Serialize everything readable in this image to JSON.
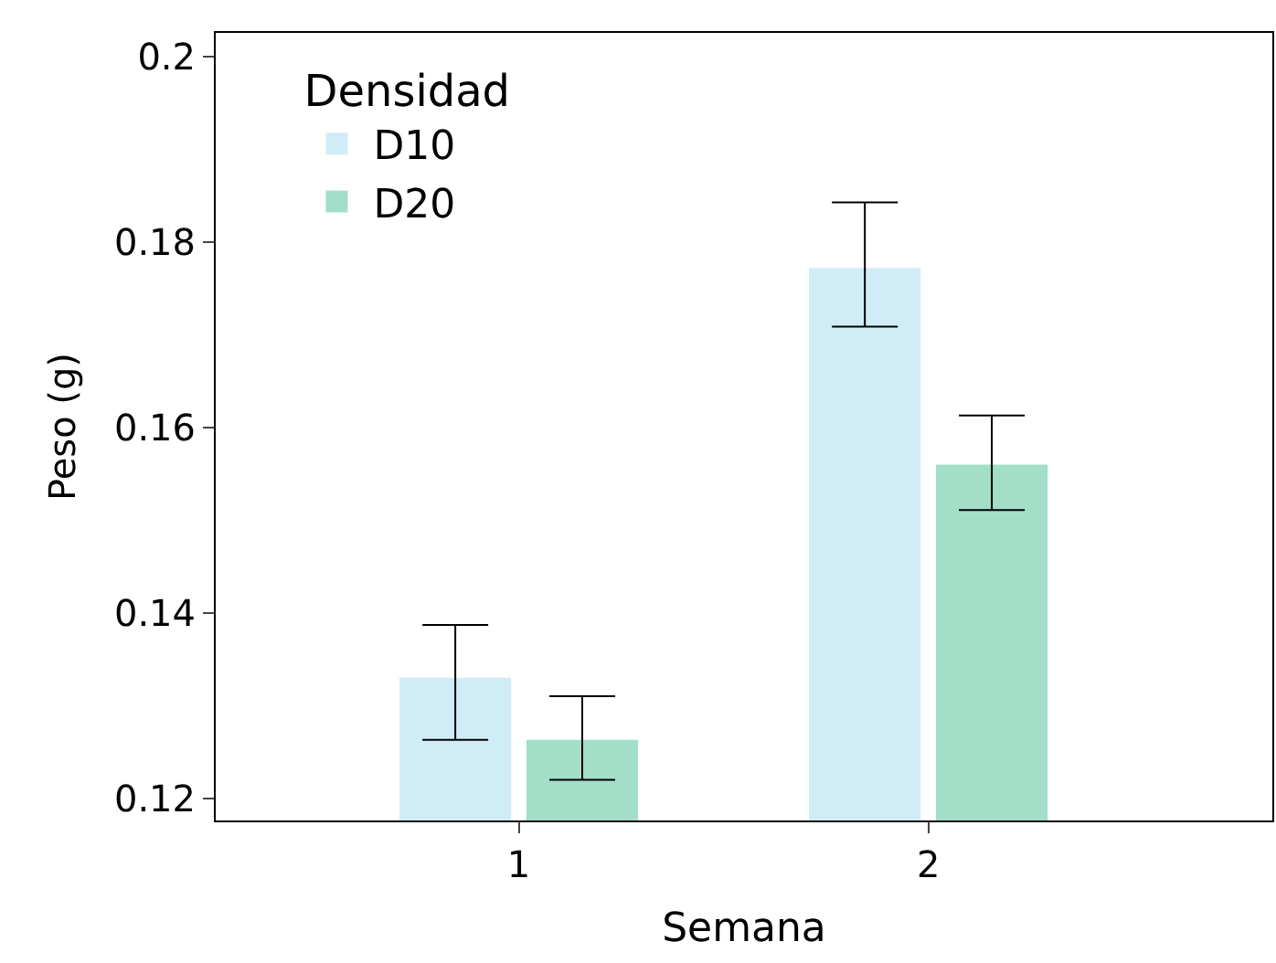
{
  "chart_data": {
    "type": "bar",
    "xlabel": "Semana",
    "ylabel": "Peso (g)",
    "legend_title": "Densidad",
    "categories": [
      "1",
      "2"
    ],
    "series": [
      {
        "name": "D10",
        "color": "#d0ecf7",
        "values": [
          0.133,
          0.1772
        ],
        "errors": [
          [
            0.1263,
            0.1387
          ],
          [
            0.1709,
            0.1843
          ]
        ]
      },
      {
        "name": "D20",
        "color": "#a3dfc8",
        "values": [
          0.1263,
          0.156
        ],
        "errors": [
          [
            0.122,
            0.131
          ],
          [
            0.1511,
            0.1613
          ]
        ]
      }
    ],
    "ylim": [
      0.1176,
      0.2026
    ],
    "yticks": [
      0.12,
      0.14,
      0.16,
      0.18,
      {
        "value": 0.2,
        "label": "0.2"
      }
    ],
    "legend": "top left"
  }
}
